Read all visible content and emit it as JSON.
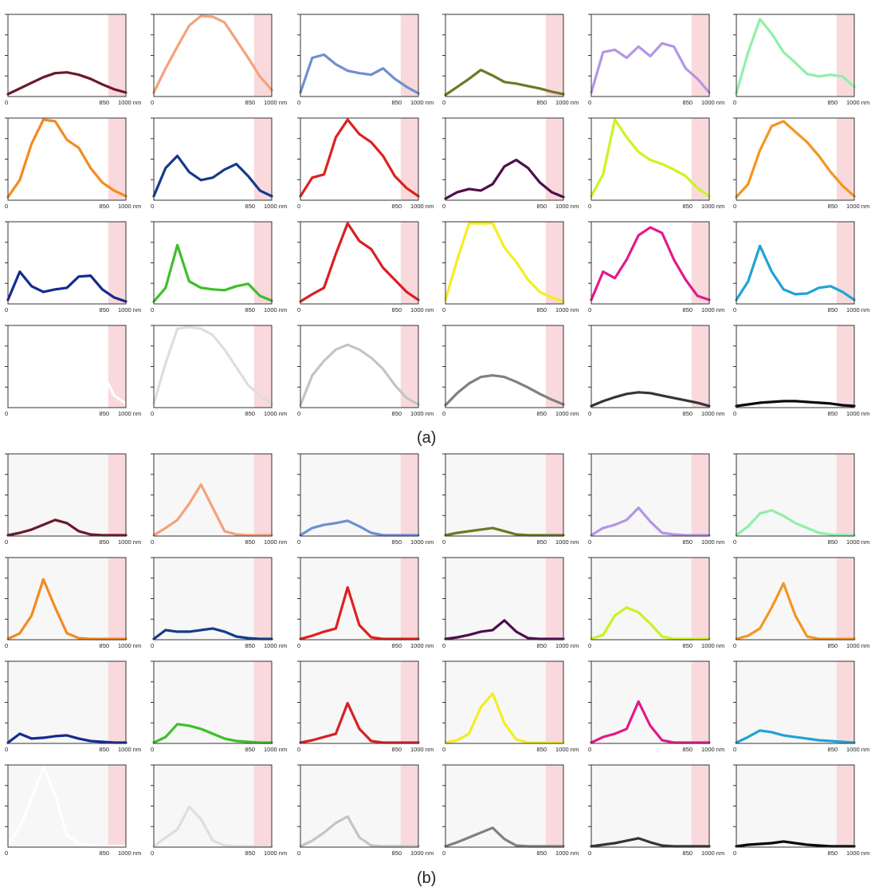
{
  "figure": {
    "caption_a": "(a)",
    "caption_b": "(b)"
  },
  "axis": {
    "x_start_label": "0",
    "x_mid_label": "850",
    "x_end_label": "1000 nm",
    "y_ticks": 4,
    "x_min": 0,
    "x_max": 1000,
    "nir_band_start_nm": 850,
    "nir_band_color": "#f9d9dc",
    "panel_b_background": "#f7f7f7"
  },
  "chart_data": [
    {
      "panel": "(a)",
      "type": "line",
      "grid": {
        "rows": 4,
        "cols": 6
      },
      "ylim": [
        0,
        1
      ],
      "x": [
        0,
        100,
        200,
        300,
        400,
        500,
        600,
        700,
        800,
        900,
        1000
      ],
      "series": [
        {
          "color": "#6b1a2a",
          "values": [
            0.03,
            0.1,
            0.17,
            0.24,
            0.29,
            0.3,
            0.27,
            0.22,
            0.15,
            0.09,
            0.05
          ]
        },
        {
          "color": "#f5a27a",
          "values": [
            0.05,
            0.35,
            0.62,
            0.88,
            1.0,
            0.99,
            0.92,
            0.7,
            0.48,
            0.25,
            0.08
          ]
        },
        {
          "color": "#6f8fd1",
          "values": [
            0.05,
            0.48,
            0.52,
            0.4,
            0.32,
            0.29,
            0.27,
            0.35,
            0.22,
            0.12,
            0.04
          ]
        },
        {
          "color": "#6b7a26",
          "values": [
            0.02,
            0.12,
            0.22,
            0.33,
            0.26,
            0.18,
            0.16,
            0.13,
            0.1,
            0.06,
            0.03
          ]
        },
        {
          "color": "#b496e4",
          "values": [
            0.05,
            0.55,
            0.58,
            0.48,
            0.62,
            0.5,
            0.66,
            0.62,
            0.35,
            0.22,
            0.05
          ]
        },
        {
          "color": "#8ff0a8",
          "values": [
            0.04,
            0.55,
            0.96,
            0.78,
            0.55,
            0.42,
            0.28,
            0.25,
            0.27,
            0.25,
            0.12
          ]
        },
        {
          "color": "#f58a1f",
          "values": [
            0.04,
            0.25,
            0.7,
            1.0,
            0.98,
            0.75,
            0.65,
            0.4,
            0.22,
            0.12,
            0.05
          ]
        },
        {
          "color": "#143b8c",
          "values": [
            0.05,
            0.4,
            0.55,
            0.35,
            0.25,
            0.28,
            0.38,
            0.45,
            0.3,
            0.12,
            0.05
          ]
        },
        {
          "color": "#e0201f",
          "values": [
            0.05,
            0.28,
            0.32,
            0.78,
            1.0,
            0.82,
            0.72,
            0.55,
            0.3,
            0.15,
            0.05
          ]
        },
        {
          "color": "#4d0f4d",
          "values": [
            0.02,
            0.1,
            0.14,
            0.12,
            0.2,
            0.42,
            0.5,
            0.4,
            0.22,
            0.1,
            0.04
          ]
        },
        {
          "color": "#c9f520",
          "values": [
            0.05,
            0.32,
            1.0,
            0.78,
            0.6,
            0.5,
            0.45,
            0.38,
            0.3,
            0.15,
            0.05
          ]
        },
        {
          "color": "#f5951f",
          "values": [
            0.04,
            0.2,
            0.62,
            0.92,
            0.98,
            0.85,
            0.72,
            0.55,
            0.35,
            0.18,
            0.05
          ]
        },
        {
          "color": "#142b91",
          "values": [
            0.05,
            0.4,
            0.22,
            0.15,
            0.18,
            0.2,
            0.34,
            0.35,
            0.18,
            0.08,
            0.03
          ]
        },
        {
          "color": "#3fbf2a",
          "values": [
            0.03,
            0.2,
            0.73,
            0.28,
            0.2,
            0.18,
            0.17,
            0.22,
            0.25,
            0.1,
            0.04
          ]
        },
        {
          "color": "#d81f26",
          "values": [
            0.03,
            0.12,
            0.2,
            0.62,
            1.0,
            0.78,
            0.68,
            0.45,
            0.3,
            0.15,
            0.05
          ]
        },
        {
          "color": "#f5ed1f",
          "values": [
            0.05,
            0.55,
            1.0,
            1.0,
            1.0,
            0.7,
            0.52,
            0.3,
            0.15,
            0.08,
            0.03
          ]
        },
        {
          "color": "#e21a8c",
          "values": [
            0.05,
            0.4,
            0.32,
            0.55,
            0.85,
            0.95,
            0.88,
            0.55,
            0.3,
            0.1,
            0.05
          ]
        },
        {
          "color": "#1fa3d6",
          "values": [
            0.05,
            0.28,
            0.72,
            0.4,
            0.18,
            0.12,
            0.13,
            0.2,
            0.22,
            0.15,
            0.05
          ]
        },
        {
          "color": "#ffffff",
          "values": [
            0.0,
            0.0,
            0.0,
            0.0,
            0.0,
            0.0,
            0.0,
            0.0,
            0.45,
            0.15,
            0.05
          ]
        },
        {
          "color": "#dedede",
          "values": [
            0.05,
            0.55,
            0.98,
            1.0,
            0.98,
            0.9,
            0.72,
            0.5,
            0.28,
            0.15,
            0.05
          ]
        },
        {
          "color": "#c4c4c4",
          "values": [
            0.03,
            0.4,
            0.58,
            0.72,
            0.78,
            0.72,
            0.62,
            0.48,
            0.28,
            0.12,
            0.04
          ]
        },
        {
          "color": "#808080",
          "values": [
            0.03,
            0.18,
            0.3,
            0.38,
            0.4,
            0.38,
            0.32,
            0.25,
            0.17,
            0.1,
            0.04
          ]
        },
        {
          "color": "#363636",
          "values": [
            0.02,
            0.08,
            0.13,
            0.17,
            0.19,
            0.18,
            0.15,
            0.12,
            0.09,
            0.06,
            0.02
          ]
        },
        {
          "color": "#0a0a0a",
          "values": [
            0.02,
            0.04,
            0.06,
            0.07,
            0.08,
            0.08,
            0.07,
            0.06,
            0.05,
            0.03,
            0.02
          ]
        }
      ]
    },
    {
      "panel": "(b)",
      "type": "line",
      "grid": {
        "rows": 4,
        "cols": 6
      },
      "ylim": [
        0,
        1
      ],
      "x": [
        0,
        100,
        200,
        300,
        400,
        500,
        600,
        700,
        800,
        900,
        1000
      ],
      "series": [
        {
          "color": "#6b1a2a",
          "values": [
            0.01,
            0.04,
            0.08,
            0.14,
            0.2,
            0.16,
            0.06,
            0.02,
            0.01,
            0.01,
            0.01
          ]
        },
        {
          "color": "#f5a27a",
          "values": [
            0.01,
            0.1,
            0.2,
            0.4,
            0.64,
            0.35,
            0.06,
            0.02,
            0.01,
            0.01,
            0.01
          ]
        },
        {
          "color": "#6f8fd1",
          "values": [
            0.01,
            0.1,
            0.14,
            0.16,
            0.19,
            0.12,
            0.04,
            0.01,
            0.01,
            0.01,
            0.01
          ]
        },
        {
          "color": "#6b7a26",
          "values": [
            0.01,
            0.04,
            0.06,
            0.08,
            0.1,
            0.06,
            0.02,
            0.01,
            0.01,
            0.01,
            0.01
          ]
        },
        {
          "color": "#b496e4",
          "values": [
            0.01,
            0.1,
            0.14,
            0.2,
            0.35,
            0.18,
            0.04,
            0.02,
            0.01,
            0.01,
            0.01
          ]
        },
        {
          "color": "#8ff0a8",
          "values": [
            0.01,
            0.12,
            0.28,
            0.32,
            0.25,
            0.16,
            0.1,
            0.04,
            0.02,
            0.01,
            0.01
          ]
        },
        {
          "color": "#f58a1f",
          "values": [
            0.01,
            0.08,
            0.3,
            0.75,
            0.4,
            0.08,
            0.02,
            0.01,
            0.01,
            0.01,
            0.01
          ]
        },
        {
          "color": "#143b8c",
          "values": [
            0.01,
            0.12,
            0.1,
            0.1,
            0.12,
            0.14,
            0.1,
            0.04,
            0.02,
            0.01,
            0.01
          ]
        },
        {
          "color": "#e0201f",
          "values": [
            0.01,
            0.05,
            0.1,
            0.14,
            0.65,
            0.18,
            0.03,
            0.01,
            0.01,
            0.01,
            0.01
          ]
        },
        {
          "color": "#4d0f4d",
          "values": [
            0.01,
            0.03,
            0.06,
            0.1,
            0.12,
            0.24,
            0.1,
            0.02,
            0.01,
            0.01,
            0.01
          ]
        },
        {
          "color": "#c9f520",
          "values": [
            0.01,
            0.06,
            0.3,
            0.4,
            0.34,
            0.2,
            0.04,
            0.01,
            0.01,
            0.01,
            0.01
          ]
        },
        {
          "color": "#f5951f",
          "values": [
            0.01,
            0.05,
            0.14,
            0.4,
            0.7,
            0.3,
            0.04,
            0.01,
            0.01,
            0.01,
            0.01
          ]
        },
        {
          "color": "#142b91",
          "values": [
            0.01,
            0.12,
            0.06,
            0.07,
            0.09,
            0.1,
            0.06,
            0.03,
            0.02,
            0.01,
            0.01
          ]
        },
        {
          "color": "#3fbf2a",
          "values": [
            0.01,
            0.08,
            0.24,
            0.22,
            0.18,
            0.12,
            0.06,
            0.03,
            0.02,
            0.01,
            0.01
          ]
        },
        {
          "color": "#d81f26",
          "values": [
            0.01,
            0.04,
            0.08,
            0.12,
            0.5,
            0.18,
            0.03,
            0.01,
            0.01,
            0.01,
            0.01
          ]
        },
        {
          "color": "#f5ed1f",
          "values": [
            0.01,
            0.04,
            0.12,
            0.45,
            0.62,
            0.25,
            0.05,
            0.01,
            0.01,
            0.01,
            0.01
          ]
        },
        {
          "color": "#e21a8c",
          "values": [
            0.01,
            0.08,
            0.12,
            0.18,
            0.52,
            0.22,
            0.04,
            0.01,
            0.01,
            0.01,
            0.01
          ]
        },
        {
          "color": "#1fa3d6",
          "values": [
            0.01,
            0.08,
            0.16,
            0.14,
            0.1,
            0.08,
            0.06,
            0.04,
            0.03,
            0.02,
            0.01
          ]
        },
        {
          "color": "#ffffff",
          "values": [
            0.02,
            0.25,
            0.6,
            1.0,
            0.65,
            0.15,
            0.04,
            0.02,
            0.01,
            0.01,
            0.01
          ]
        },
        {
          "color": "#dedede",
          "values": [
            0.01,
            0.12,
            0.22,
            0.5,
            0.35,
            0.08,
            0.02,
            0.01,
            0.01,
            0.01,
            0.01
          ]
        },
        {
          "color": "#c4c4c4",
          "values": [
            0.01,
            0.08,
            0.18,
            0.3,
            0.38,
            0.12,
            0.02,
            0.01,
            0.01,
            0.01,
            0.01
          ]
        },
        {
          "color": "#808080",
          "values": [
            0.01,
            0.06,
            0.12,
            0.18,
            0.24,
            0.1,
            0.02,
            0.01,
            0.01,
            0.01,
            0.01
          ]
        },
        {
          "color": "#363636",
          "values": [
            0.01,
            0.03,
            0.05,
            0.08,
            0.11,
            0.06,
            0.02,
            0.01,
            0.01,
            0.01,
            0.01
          ]
        },
        {
          "color": "#0a0a0a",
          "values": [
            0.01,
            0.03,
            0.04,
            0.05,
            0.07,
            0.05,
            0.03,
            0.02,
            0.01,
            0.01,
            0.01
          ]
        }
      ]
    }
  ]
}
